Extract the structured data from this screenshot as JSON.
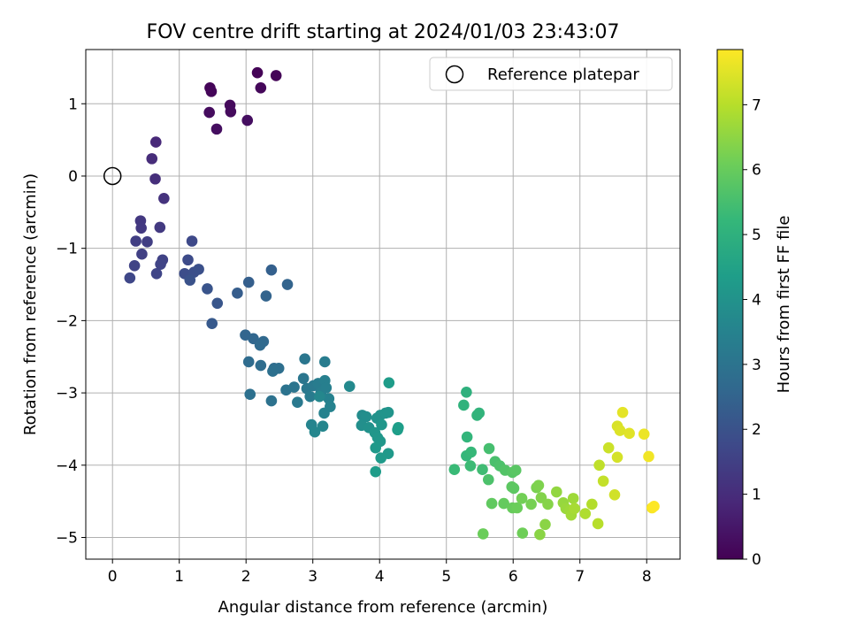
{
  "chart_data": {
    "type": "scatter",
    "title": "FOV centre drift starting at 2024/01/03 23:43:07",
    "xlabel": "Angular distance from reference (arcmin)",
    "ylabel": "Rotation from reference (arcmin)",
    "xlim": [
      -0.4,
      8.5
    ],
    "ylim": [
      -5.3,
      1.75
    ],
    "xticks": [
      0,
      1,
      2,
      3,
      4,
      5,
      6,
      7,
      8
    ],
    "yticks": [
      1,
      0,
      -1,
      -2,
      -3,
      -4,
      -5
    ],
    "xtick_labels": [
      "0",
      "1",
      "2",
      "3",
      "4",
      "5",
      "6",
      "7",
      "8"
    ],
    "ytick_labels": [
      "1",
      "0",
      "−1",
      "−2",
      "−3",
      "−4",
      "−5"
    ],
    "grid": true,
    "legend": {
      "position": "top-right",
      "label": "Reference platepar",
      "marker": "open-circle"
    },
    "reference_point": {
      "x": 0,
      "y": 0
    },
    "colorbar": {
      "label": "Hours from first FF file",
      "colormap": "viridis",
      "range": [
        0,
        7.85
      ],
      "ticks": [
        0,
        1,
        2,
        3,
        4,
        5,
        6,
        7
      ],
      "tick_labels": [
        "0",
        "1",
        "2",
        "3",
        "4",
        "5",
        "6",
        "7"
      ]
    },
    "colormap_stops": [
      "#440154",
      "#482878",
      "#3e4989",
      "#31688e",
      "#26828e",
      "#1f9e89",
      "#35b779",
      "#6ece58",
      "#b5de2b",
      "#fde725"
    ],
    "series": [
      {
        "points": [
          [
            2.17,
            1.43,
            0.05
          ],
          [
            2.45,
            1.39,
            0.08
          ],
          [
            1.46,
            1.22,
            0.1
          ],
          [
            1.48,
            1.17,
            0.12
          ],
          [
            2.22,
            1.22,
            0.15
          ],
          [
            1.76,
            0.98,
            0.2
          ],
          [
            1.77,
            0.89,
            0.22
          ],
          [
            1.45,
            0.88,
            0.25
          ],
          [
            2.02,
            0.77,
            0.28
          ],
          [
            1.56,
            0.65,
            0.3
          ],
          [
            0.65,
            0.47,
            0.9
          ],
          [
            0.59,
            0.24,
            1.0
          ],
          [
            0.64,
            -0.04,
            1.05
          ],
          [
            0.77,
            -0.31,
            1.15
          ],
          [
            0.42,
            -0.62,
            1.3
          ],
          [
            0.43,
            -0.72,
            1.32
          ],
          [
            0.71,
            -0.71,
            1.35
          ],
          [
            0.35,
            -0.9,
            1.45
          ],
          [
            0.52,
            -0.91,
            1.45
          ],
          [
            0.44,
            -1.08,
            1.5
          ],
          [
            0.75,
            -1.16,
            1.55
          ],
          [
            0.72,
            -1.22,
            1.6
          ],
          [
            0.33,
            -1.24,
            1.6
          ],
          [
            0.66,
            -1.35,
            1.65
          ],
          [
            0.26,
            -1.41,
            1.7
          ],
          [
            1.19,
            -0.9,
            1.75
          ],
          [
            1.13,
            -1.16,
            1.8
          ],
          [
            1.08,
            -1.35,
            1.85
          ],
          [
            1.22,
            -1.33,
            1.9
          ],
          [
            1.29,
            -1.29,
            1.95
          ],
          [
            1.16,
            -1.44,
            2.0
          ],
          [
            1.42,
            -1.56,
            2.05
          ],
          [
            1.57,
            -1.76,
            2.1
          ],
          [
            1.49,
            -2.04,
            2.2
          ],
          [
            1.87,
            -1.62,
            2.3
          ],
          [
            2.04,
            -1.47,
            2.35
          ],
          [
            2.38,
            -1.3,
            2.4
          ],
          [
            2.62,
            -1.5,
            2.5
          ],
          [
            2.3,
            -1.66,
            2.5
          ],
          [
            1.99,
            -2.2,
            2.55
          ],
          [
            2.11,
            -2.25,
            2.6
          ],
          [
            2.26,
            -2.29,
            2.65
          ],
          [
            2.21,
            -2.34,
            2.7
          ],
          [
            2.04,
            -2.57,
            2.75
          ],
          [
            2.22,
            -2.62,
            2.8
          ],
          [
            2.42,
            -2.66,
            2.8
          ],
          [
            2.49,
            -2.66,
            2.85
          ],
          [
            2.4,
            -2.7,
            2.9
          ],
          [
            2.06,
            -3.02,
            2.9
          ],
          [
            2.38,
            -3.11,
            2.95
          ],
          [
            2.6,
            -2.96,
            3.0
          ],
          [
            2.72,
            -2.92,
            3.05
          ],
          [
            2.88,
            -2.53,
            3.1
          ],
          [
            2.86,
            -2.8,
            3.1
          ],
          [
            2.91,
            -2.94,
            3.15
          ],
          [
            2.77,
            -3.13,
            3.2
          ],
          [
            3.01,
            -2.9,
            3.2
          ],
          [
            2.96,
            -3.05,
            3.25
          ],
          [
            3.08,
            -2.87,
            3.3
          ],
          [
            3.18,
            -2.57,
            3.3
          ],
          [
            3.12,
            -3.0,
            3.35
          ],
          [
            3.18,
            -2.83,
            3.4
          ],
          [
            3.2,
            -2.93,
            3.4
          ],
          [
            3.24,
            -3.08,
            3.45
          ],
          [
            3.26,
            -3.19,
            3.5
          ],
          [
            3.17,
            -3.28,
            3.5
          ],
          [
            2.98,
            -3.44,
            3.55
          ],
          [
            3.03,
            -3.54,
            3.6
          ],
          [
            3.15,
            -3.46,
            3.6
          ],
          [
            3.1,
            -3.05,
            3.65
          ],
          [
            3.55,
            -2.91,
            3.7
          ],
          [
            3.74,
            -3.31,
            3.8
          ],
          [
            3.8,
            -3.33,
            3.85
          ],
          [
            3.73,
            -3.45,
            3.9
          ],
          [
            3.84,
            -3.48,
            3.95
          ],
          [
            3.96,
            -3.35,
            4.0
          ],
          [
            4.01,
            -3.31,
            4.0
          ],
          [
            4.09,
            -3.28,
            4.05
          ],
          [
            4.13,
            -3.27,
            4.05
          ],
          [
            4.03,
            -3.44,
            4.1
          ],
          [
            3.93,
            -3.55,
            4.1
          ],
          [
            3.97,
            -3.62,
            4.15
          ],
          [
            4.01,
            -3.67,
            4.15
          ],
          [
            3.94,
            -3.76,
            4.2
          ],
          [
            4.13,
            -3.84,
            4.2
          ],
          [
            4.02,
            -3.9,
            4.25
          ],
          [
            3.94,
            -4.09,
            4.3
          ],
          [
            4.14,
            -2.86,
            4.3
          ],
          [
            4.28,
            -3.48,
            4.35
          ],
          [
            4.27,
            -3.51,
            4.35
          ],
          [
            5.3,
            -2.99,
            5.0
          ],
          [
            5.26,
            -3.17,
            5.05
          ],
          [
            5.46,
            -3.31,
            5.1
          ],
          [
            5.49,
            -3.28,
            5.1
          ],
          [
            5.31,
            -3.61,
            5.15
          ],
          [
            5.3,
            -3.87,
            5.2
          ],
          [
            5.37,
            -3.82,
            5.25
          ],
          [
            5.12,
            -4.06,
            5.3
          ],
          [
            5.36,
            -4.01,
            5.35
          ],
          [
            5.54,
            -4.06,
            5.4
          ],
          [
            5.64,
            -3.77,
            5.5
          ],
          [
            5.73,
            -3.95,
            5.55
          ],
          [
            5.8,
            -4.01,
            5.6
          ],
          [
            5.63,
            -4.2,
            5.6
          ],
          [
            5.88,
            -4.07,
            5.7
          ],
          [
            5.99,
            -4.1,
            5.75
          ],
          [
            6.04,
            -4.07,
            5.8
          ],
          [
            5.98,
            -4.3,
            5.85
          ],
          [
            6.01,
            -4.32,
            5.85
          ],
          [
            5.68,
            -4.53,
            5.9
          ],
          [
            5.86,
            -4.53,
            5.95
          ],
          [
            5.99,
            -4.59,
            6.0
          ],
          [
            6.06,
            -4.59,
            6.05
          ],
          [
            5.55,
            -4.95,
            6.05
          ],
          [
            6.14,
            -4.94,
            6.1
          ],
          [
            6.13,
            -4.46,
            6.15
          ],
          [
            6.27,
            -4.54,
            6.2
          ],
          [
            6.35,
            -4.31,
            6.25
          ],
          [
            6.38,
            -4.28,
            6.3
          ],
          [
            6.42,
            -4.45,
            6.35
          ],
          [
            6.52,
            -4.54,
            6.4
          ],
          [
            6.48,
            -4.82,
            6.45
          ],
          [
            6.4,
            -4.96,
            6.45
          ],
          [
            6.65,
            -4.37,
            6.55
          ],
          [
            6.75,
            -4.52,
            6.6
          ],
          [
            6.79,
            -4.6,
            6.65
          ],
          [
            6.85,
            -4.63,
            6.7
          ],
          [
            6.9,
            -4.46,
            6.7
          ],
          [
            6.87,
            -4.69,
            6.75
          ],
          [
            6.92,
            -4.6,
            6.8
          ],
          [
            7.08,
            -4.67,
            6.9
          ],
          [
            7.18,
            -4.54,
            6.95
          ],
          [
            7.27,
            -4.81,
            7.0
          ],
          [
            7.29,
            -4.0,
            7.1
          ],
          [
            7.35,
            -4.22,
            7.15
          ],
          [
            7.43,
            -3.76,
            7.25
          ],
          [
            7.52,
            -4.41,
            7.3
          ],
          [
            7.56,
            -3.89,
            7.35
          ],
          [
            7.56,
            -3.46,
            7.4
          ],
          [
            7.6,
            -3.52,
            7.45
          ],
          [
            7.74,
            -3.56,
            7.5
          ],
          [
            7.64,
            -3.27,
            7.55
          ],
          [
            7.96,
            -3.57,
            7.65
          ],
          [
            8.03,
            -3.88,
            7.7
          ],
          [
            8.08,
            -4.59,
            7.8
          ],
          [
            8.11,
            -4.57,
            7.85
          ]
        ]
      }
    ]
  }
}
